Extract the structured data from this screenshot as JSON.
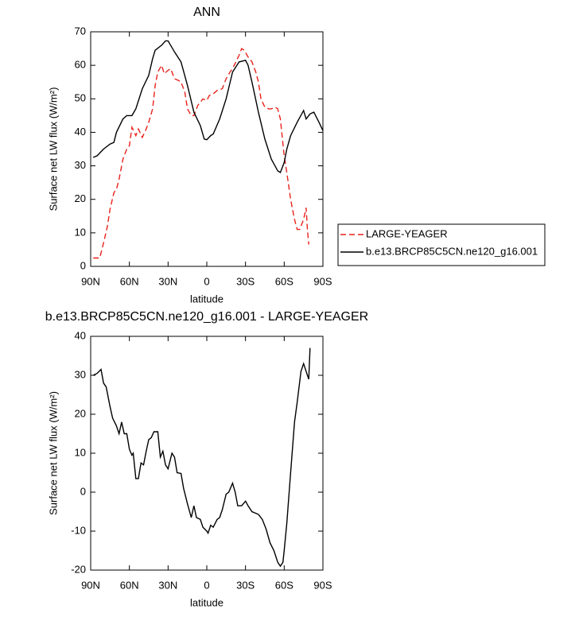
{
  "chart_data": [
    {
      "type": "line",
      "title": "ANN",
      "xlabel": "latitude",
      "ylabel": "Surface net LW flux (W/m²)",
      "xlim": [
        90,
        -90
      ],
      "xticks": [
        {
          "value": 90,
          "label": "90N"
        },
        {
          "value": 60,
          "label": "60N"
        },
        {
          "value": 30,
          "label": "30N"
        },
        0,
        {
          "value": -30,
          "label": "30S"
        },
        {
          "value": -60,
          "label": "60S"
        },
        {
          "value": -90,
          "label": "90S"
        }
      ],
      "ylim": [
        0,
        70
      ],
      "yticks": [
        0,
        10,
        20,
        30,
        40,
        50,
        60,
        70
      ],
      "legend": "right",
      "series": [
        {
          "name": "LARGE-YEAGER",
          "color": "#e8221c",
          "dash": true,
          "x": [
            88,
            83,
            80,
            77,
            75,
            72,
            70,
            68,
            65,
            62,
            60,
            58,
            55,
            53,
            50,
            47,
            45,
            42,
            40,
            38,
            35,
            33,
            30,
            28,
            25,
            22,
            20,
            17,
            15,
            12,
            10,
            7,
            5,
            3,
            0,
            -2,
            -5,
            -8,
            -12,
            -15,
            -18,
            -20,
            -25,
            -27,
            -29,
            -32,
            -35,
            -38,
            -40,
            -42,
            -45,
            -48,
            -50,
            -53,
            -55,
            -57,
            -60,
            -62,
            -65,
            -68,
            -70,
            -72,
            -75,
            -77,
            -78,
            -79
          ],
          "values": [
            2.5,
            2.5,
            7,
            12,
            17,
            22,
            23,
            26,
            32,
            35,
            36,
            41.5,
            39,
            41,
            38.5,
            41,
            43,
            47,
            54,
            58,
            60,
            57.5,
            58.5,
            59,
            56,
            55.5,
            55,
            52,
            47,
            45,
            45,
            48,
            49,
            50,
            49.5,
            51,
            51.5,
            52.5,
            53,
            56,
            58,
            59,
            63,
            65,
            64.5,
            62.5,
            61,
            58,
            55,
            50,
            47.5,
            47,
            47,
            47.5,
            47,
            44,
            33,
            28,
            20,
            14,
            11,
            11,
            14,
            17.5,
            11,
            6.5
          ]
        },
        {
          "name": "b.e13.BRCP85C5CN.ne120_g16.001",
          "color": "#000000",
          "dash": false,
          "x": [
            88,
            85,
            80,
            75,
            72,
            70,
            65,
            62,
            58,
            55,
            50,
            45,
            42,
            40,
            35,
            32,
            30,
            25,
            20,
            15,
            10,
            5,
            2,
            0,
            -3,
            -5,
            -10,
            -15,
            -20,
            -25,
            -30,
            -32,
            -35,
            -40,
            -45,
            -50,
            -55,
            -57,
            -60,
            -62,
            -65,
            -70,
            -75,
            -77,
            -80,
            -83,
            -87,
            -90
          ],
          "values": [
            32.5,
            33,
            35,
            36.5,
            37,
            40,
            44,
            45,
            45,
            47,
            53,
            57,
            62,
            64.5,
            66,
            67.3,
            67.3,
            64,
            61,
            54,
            46,
            42,
            38,
            37.8,
            39,
            39.5,
            44,
            50,
            58,
            61,
            61.5,
            60,
            55,
            46,
            38,
            32,
            28.5,
            28,
            31,
            35,
            39,
            43,
            46.5,
            44,
            45.5,
            46,
            43,
            40.5
          ]
        }
      ]
    },
    {
      "type": "line",
      "title": "b.e13.BRCP85C5CN.ne120_g16.001 - LARGE-YEAGER",
      "xlabel": "latitude",
      "ylabel": "Surface net LW flux (W/m²)",
      "xlim": [
        90,
        -90
      ],
      "xticks": [
        {
          "value": 90,
          "label": "90N"
        },
        {
          "value": 60,
          "label": "60N"
        },
        {
          "value": 30,
          "label": "30N"
        },
        0,
        {
          "value": -30,
          "label": "30S"
        },
        {
          "value": -60,
          "label": "60S"
        },
        {
          "value": -90,
          "label": "90S"
        }
      ],
      "ylim": [
        -20,
        40
      ],
      "yticks": [
        -20,
        -10,
        0,
        10,
        20,
        30,
        40
      ],
      "series": [
        {
          "color": "#000000",
          "dash": false,
          "x": [
            88,
            85,
            82,
            80,
            78,
            75,
            73,
            70,
            68,
            66,
            64,
            62,
            60,
            58,
            57,
            55,
            53,
            51,
            49,
            47,
            45,
            43,
            41,
            38,
            36,
            34,
            32,
            30,
            27,
            25,
            23,
            20,
            18,
            15,
            12,
            10,
            8,
            5,
            3,
            0,
            -1,
            -3,
            -5,
            -8,
            -10,
            -12,
            -15,
            -17,
            -20,
            -22,
            -24,
            -27,
            -30,
            -32,
            -35,
            -40,
            -43,
            -46,
            -49,
            -52,
            -55,
            -57,
            -59,
            -60,
            -62,
            -65,
            -68,
            -70,
            -73,
            -75,
            -78,
            -79,
            -80
          ],
          "values": [
            30,
            30.5,
            31.5,
            28,
            27,
            22,
            19,
            17,
            15,
            18,
            15,
            15,
            11,
            9.5,
            10,
            3.5,
            3.5,
            7.5,
            7,
            10.5,
            13.5,
            14,
            15.5,
            15.5,
            9,
            10.5,
            7,
            6,
            10,
            9,
            5,
            4.8,
            1,
            -3,
            -6.5,
            -3.5,
            -6.5,
            -7,
            -9,
            -10,
            -10.5,
            -8.5,
            -9,
            -7,
            -6.5,
            -4.5,
            -0.5,
            0,
            2.3,
            0,
            -3.5,
            -3.5,
            -2.3,
            -3.5,
            -5,
            -5.7,
            -7,
            -9.5,
            -13,
            -15,
            -18,
            -19,
            -18,
            -15,
            -8,
            5,
            18,
            23,
            31,
            33,
            30,
            29,
            37
          ]
        }
      ]
    }
  ]
}
